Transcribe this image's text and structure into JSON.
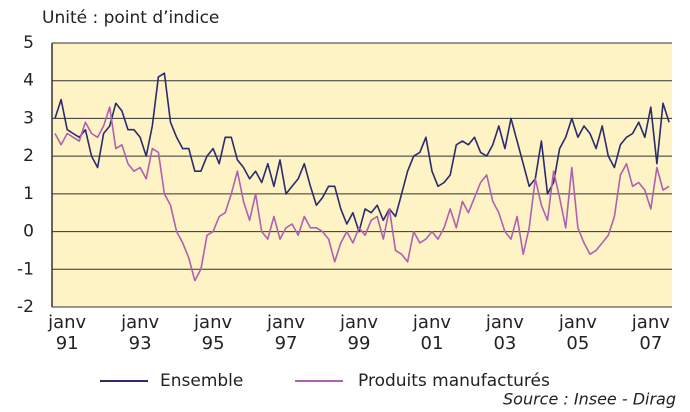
{
  "chart_data": {
    "type": "line",
    "title": "Unité : point d’indice",
    "source": "Source : Insee - Dirag",
    "categories": [
      null,
      null,
      "janv 91",
      null,
      null,
      null,
      null,
      null,
      null,
      null,
      null,
      null,
      null,
      null,
      "janv 93",
      null,
      null,
      null,
      null,
      null,
      null,
      null,
      null,
      null,
      null,
      null,
      "janv 95",
      null,
      null,
      null,
      null,
      null,
      null,
      null,
      null,
      null,
      null,
      null,
      "janv 97",
      null,
      null,
      null,
      null,
      null,
      null,
      null,
      null,
      null,
      null,
      null,
      "janv 99",
      null,
      null,
      null,
      null,
      null,
      null,
      null,
      null,
      null,
      null,
      null,
      "janv 01",
      null,
      null,
      null,
      null,
      null,
      null,
      null,
      null,
      null,
      null,
      null,
      "janv 03",
      null,
      null,
      null,
      null,
      null,
      null,
      null,
      null,
      null,
      null,
      null,
      "janv 05",
      null,
      null,
      null,
      null,
      null,
      null,
      null,
      null,
      null,
      null,
      null,
      "janv 07",
      null,
      null,
      null
    ],
    "series": [
      {
        "name": "Ensemble",
        "color": "#2b2b6e",
        "values": [
          3.0,
          3.5,
          2.7,
          2.6,
          2.5,
          2.7,
          2.0,
          1.7,
          2.6,
          2.8,
          3.4,
          3.2,
          2.7,
          2.7,
          2.5,
          2.0,
          2.8,
          4.1,
          4.2,
          2.9,
          2.5,
          2.2,
          2.2,
          1.6,
          1.6,
          2.0,
          2.2,
          1.8,
          2.5,
          2.5,
          1.9,
          1.7,
          1.4,
          1.6,
          1.3,
          1.8,
          1.2,
          1.9,
          1.0,
          1.2,
          1.4,
          1.8,
          1.2,
          0.7,
          0.9,
          1.2,
          1.2,
          0.6,
          0.2,
          0.5,
          0.0,
          0.6,
          0.5,
          0.7,
          0.3,
          0.6,
          0.4,
          1.0,
          1.6,
          2.0,
          2.1,
          2.5,
          1.6,
          1.2,
          1.3,
          1.5,
          2.3,
          2.4,
          2.3,
          2.5,
          2.1,
          2.0,
          2.3,
          2.8,
          2.2,
          3.0,
          2.4,
          1.8,
          1.2,
          1.4,
          2.4,
          1.0,
          1.3,
          2.2,
          2.5,
          3.0,
          2.5,
          2.8,
          2.6,
          2.2,
          2.8,
          2.0,
          1.7,
          2.3,
          2.5,
          2.6,
          2.9,
          2.5,
          3.3,
          1.8,
          3.4,
          2.9
        ]
      },
      {
        "name": "Produits manufacturés",
        "color": "#b060b0",
        "values": [
          2.6,
          2.3,
          2.6,
          2.5,
          2.4,
          2.9,
          2.6,
          2.5,
          2.8,
          3.3,
          2.2,
          2.3,
          1.8,
          1.6,
          1.7,
          1.4,
          2.2,
          2.1,
          1.0,
          0.7,
          0.0,
          -0.3,
          -0.7,
          -1.3,
          -1.0,
          -0.1,
          0.0,
          0.4,
          0.5,
          1.0,
          1.6,
          0.8,
          0.3,
          1.0,
          0.0,
          -0.2,
          0.4,
          -0.2,
          0.1,
          0.2,
          -0.1,
          0.4,
          0.1,
          0.1,
          0.0,
          -0.2,
          -0.8,
          -0.3,
          0.0,
          -0.3,
          0.1,
          -0.1,
          0.3,
          0.4,
          -0.2,
          0.6,
          -0.5,
          -0.6,
          -0.8,
          0.0,
          -0.3,
          -0.2,
          0.0,
          -0.2,
          0.1,
          0.6,
          0.1,
          0.8,
          0.5,
          0.9,
          1.3,
          1.5,
          0.8,
          0.5,
          0.0,
          -0.2,
          0.4,
          -0.6,
          0.1,
          1.4,
          0.7,
          0.3,
          1.6,
          0.9,
          0.1,
          1.7,
          0.1,
          -0.3,
          -0.6,
          -0.5,
          -0.3,
          -0.1,
          0.4,
          1.5,
          1.8,
          1.2,
          1.3,
          1.1,
          0.6,
          1.7,
          1.1,
          1.2
        ]
      }
    ],
    "ylim": [
      -2,
      5
    ],
    "yticks": [
      -2,
      -1,
      0,
      1,
      2,
      3,
      4,
      5
    ],
    "grid": true
  }
}
